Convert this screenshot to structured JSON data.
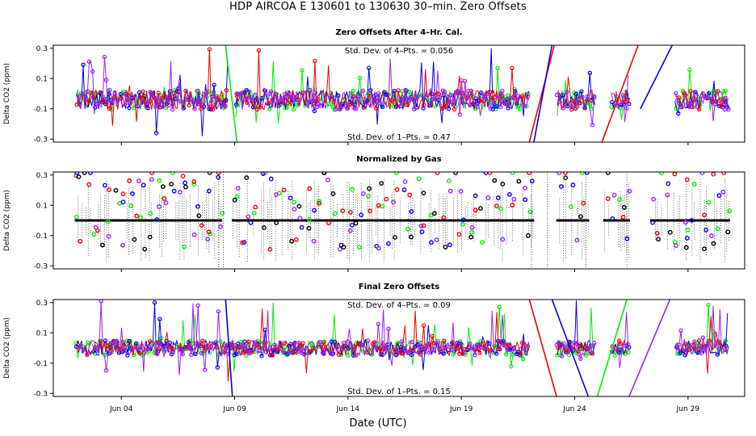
{
  "title": "HDP    AIRCOA E    130601 to 130630    30–min. Zero Offsets",
  "xlabel": "Date (UTC)",
  "colors": {
    "green": "#00ee00",
    "blue": "#0000ee",
    "red": "#ee0000",
    "magenta": "#a020f0",
    "black": "#000000"
  },
  "chart_data": [
    {
      "type": "scatter",
      "title": "Zero Offsets After 4–Hr. Cal.",
      "ylabel": "Delta CO2 (ppm)",
      "xlim": [
        1,
        31.5
      ],
      "ylim": [
        -0.32,
        0.32
      ],
      "yticks": [
        0.3,
        0.1,
        -0.1,
        -0.3
      ],
      "ytick_labels": [
        "0.3",
        "0.1",
        "-0.1",
        "-0.3"
      ],
      "xticks": [
        4,
        9,
        14,
        19,
        24,
        29
      ],
      "xtick_labels": [
        "Jun 04",
        "Jun 09",
        "Jun 14",
        "Jun 19",
        "Jun 24",
        "Jun 29"
      ],
      "annotations": [
        {
          "text": "Std. Dev. of 4–Pts. = 0.056",
          "position": "top-center"
        },
        {
          "text": "Std. Dev. of 1–Pts. = 0.47",
          "position": "bottom-center"
        }
      ],
      "series_names": [
        "green",
        "blue",
        "red",
        "magenta"
      ],
      "data_gaps": [
        [
          8.7,
          9.0
        ],
        [
          22.0,
          23.2
        ],
        [
          24.9,
          25.6
        ],
        [
          26.4,
          28.4
        ]
      ],
      "data_range": [
        2.0,
        30.8
      ],
      "baseline": -0.04,
      "spread": 0.065
    },
    {
      "type": "scatter",
      "title": "Normalized by Gas",
      "ylabel": "Delta CO2 (ppm)",
      "xlim": [
        1,
        31.5
      ],
      "ylim": [
        -0.32,
        0.32
      ],
      "yticks": [
        0.3,
        0.1,
        -0.1,
        -0.3
      ],
      "ytick_labels": [
        "0.3",
        "0.1",
        "-0.1",
        "-0.3"
      ],
      "xticks": [
        4,
        9,
        14,
        19,
        24,
        29
      ],
      "xtick_labels": [
        "Jun 04",
        "Jun 09",
        "Jun 14",
        "Jun 19",
        "Jun 24",
        "Jun 29"
      ],
      "annotations": [],
      "series_names": [
        "green",
        "blue",
        "red",
        "magenta",
        "black"
      ],
      "data_gaps": [
        [
          8.4,
          8.9
        ],
        [
          22.2,
          23.2
        ],
        [
          24.6,
          25.3
        ],
        [
          26.4,
          27.3
        ]
      ],
      "data_range": [
        2.0,
        30.8
      ],
      "baseline": 0.0,
      "spread": 0.08
    },
    {
      "type": "scatter",
      "title": "Final Zero Offsets",
      "ylabel": "Delta CO2 (ppm)",
      "xlim": [
        1,
        31.5
      ],
      "ylim": [
        -0.32,
        0.32
      ],
      "yticks": [
        0.3,
        0.1,
        -0.1,
        -0.3
      ],
      "ytick_labels": [
        "0.3",
        "0.1",
        "-0.1",
        "-0.3"
      ],
      "xticks": [
        4,
        9,
        14,
        19,
        24,
        29
      ],
      "xtick_labels": [
        "Jun 04",
        "Jun 09",
        "Jun 14",
        "Jun 19",
        "Jun 24",
        "Jun 29"
      ],
      "annotations": [
        {
          "text": "Std. Dev. of 4–Pts. = 0.09",
          "position": "top-center"
        },
        {
          "text": "Std. Dev. of 1–Pts. = 0.15",
          "position": "bottom-center"
        }
      ],
      "series_names": [
        "green",
        "blue",
        "red",
        "magenta"
      ],
      "data_gaps": [
        [
          22.0,
          23.2
        ],
        [
          24.9,
          25.6
        ],
        [
          26.4,
          28.4
        ]
      ],
      "data_range": [
        2.0,
        30.8
      ],
      "baseline": 0.0,
      "spread": 0.05
    }
  ]
}
